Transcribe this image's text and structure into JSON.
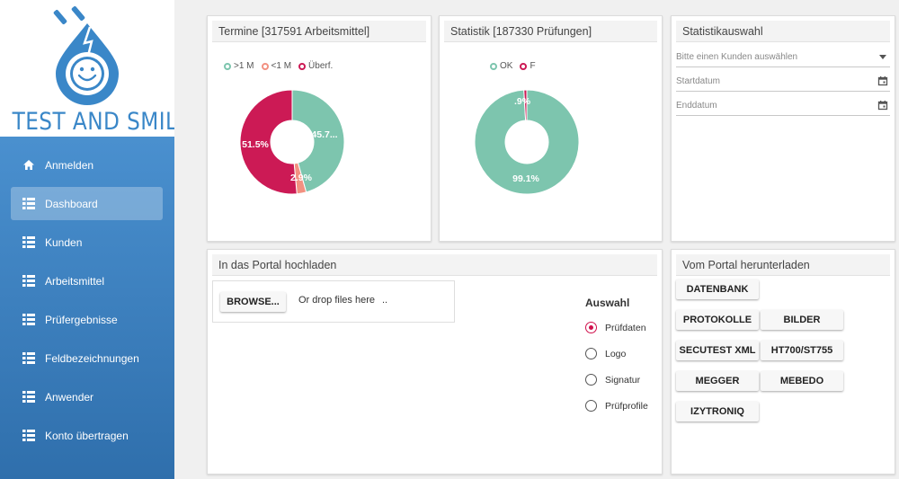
{
  "brand": {
    "name": "TEST AND SMILE",
    "logo_icon": "smiling-water-drop-with-plug-logo",
    "colors": {
      "primary": "#3a87c8",
      "sidebar_top": "#4a90cf",
      "sidebar_bottom": "#2f6fac",
      "accent": "#d0104c"
    }
  },
  "sidebar": {
    "items": [
      {
        "label": "Anmelden",
        "icon": "home-icon",
        "active": false
      },
      {
        "label": "Dashboard",
        "icon": "list-icon",
        "active": true
      },
      {
        "label": "Kunden",
        "icon": "list-icon",
        "active": false
      },
      {
        "label": "Arbeitsmittel",
        "icon": "list-icon",
        "active": false
      },
      {
        "label": "Prüfergebnisse",
        "icon": "list-icon",
        "active": false
      },
      {
        "label": "Feldbezeichnungen",
        "icon": "list-icon",
        "active": false
      },
      {
        "label": "Anwender",
        "icon": "list-icon",
        "active": false
      },
      {
        "label": "Konto übertragen",
        "icon": "list-icon",
        "active": false
      }
    ]
  },
  "termine": {
    "title": "Termine [317591 Arbeitsmittel]",
    "legend": [
      {
        "label": ">1 M",
        "color": "#7dc5ae"
      },
      {
        "label": "<1 M",
        "color": "#f29181"
      },
      {
        "label": "Überf.",
        "color": "#cc1a55"
      }
    ]
  },
  "statistik": {
    "title": "Statistik [187330 Prüfungen]",
    "legend": [
      {
        "label": "OK",
        "color": "#7dc5ae"
      },
      {
        "label": "F",
        "color": "#cc1a55"
      }
    ]
  },
  "auswahl": {
    "title": "Statistikauswahl",
    "customer_placeholder": "Bitte einen Kunden auswählen",
    "start_label": "Startdatum",
    "end_label": "Enddatum",
    "dropdown_icon": "caret-down-icon",
    "calendar_icon": "calendar-icon"
  },
  "upload": {
    "title": "In das Portal hochladen",
    "browse_label": "BROWSE...",
    "drop_text": "Or drop files here",
    "dots": "..",
    "choice_heading": "Auswahl",
    "options": [
      {
        "label": "Prüfdaten",
        "checked": true
      },
      {
        "label": "Logo",
        "checked": false
      },
      {
        "label": "Signatur",
        "checked": false
      },
      {
        "label": "Prüfprofile",
        "checked": false
      }
    ]
  },
  "download": {
    "title": "Vom Portal herunterladen",
    "buttons": [
      "DATENBANK",
      "PROTOKOLLE",
      "BILDER",
      "SECUTEST XML",
      "HT700/ST755",
      "MEGGER",
      "MEBEDO",
      "IZYTRONIQ"
    ]
  },
  "chart_data": [
    {
      "type": "pie",
      "categories": [
        ">1 M",
        "<1 M",
        "Überf."
      ],
      "values": [
        45.7,
        2.9,
        51.5
      ],
      "labels": [
        "45.7...",
        "2.9%",
        "51.5%"
      ],
      "colors": [
        "#7dc5ae",
        "#f29181",
        "#cc1a55"
      ],
      "title": "Termine [317591 Arbeitsmittel]",
      "legend": "top"
    },
    {
      "type": "pie",
      "categories": [
        "OK",
        "F"
      ],
      "values": [
        99.1,
        0.9
      ],
      "labels": [
        "99.1%",
        ".9%"
      ],
      "colors": [
        "#7dc5ae",
        "#cc1a55"
      ],
      "title": "Statistik [187330 Prüfungen]",
      "legend": "top"
    }
  ]
}
